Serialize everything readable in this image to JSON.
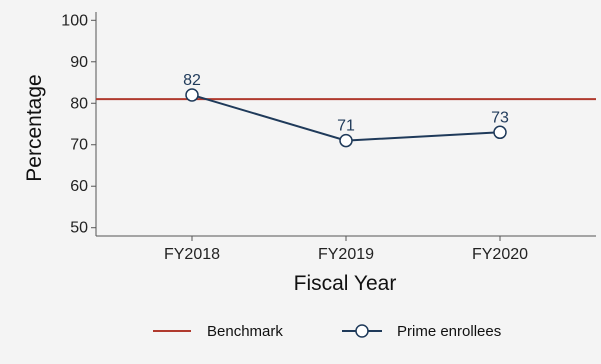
{
  "chart_data": {
    "type": "line",
    "title": "",
    "xlabel": "Fiscal Year",
    "ylabel": "Percentage",
    "categories": [
      "FY2018",
      "FY2019",
      "FY2020"
    ],
    "ylim": [
      48,
      102
    ],
    "yticks": [
      50,
      60,
      70,
      80,
      90,
      100
    ],
    "grid": false,
    "legend_position": "bottom",
    "series": [
      {
        "name": "Prime enrollees",
        "values": [
          82,
          71,
          73
        ],
        "labels": [
          "82",
          "71",
          "73"
        ],
        "color": "#1f3a5a",
        "marker": "open-circle"
      }
    ],
    "reference_lines": [
      {
        "name": "Benchmark",
        "y": 81,
        "color": "#b03a2e"
      }
    ]
  }
}
